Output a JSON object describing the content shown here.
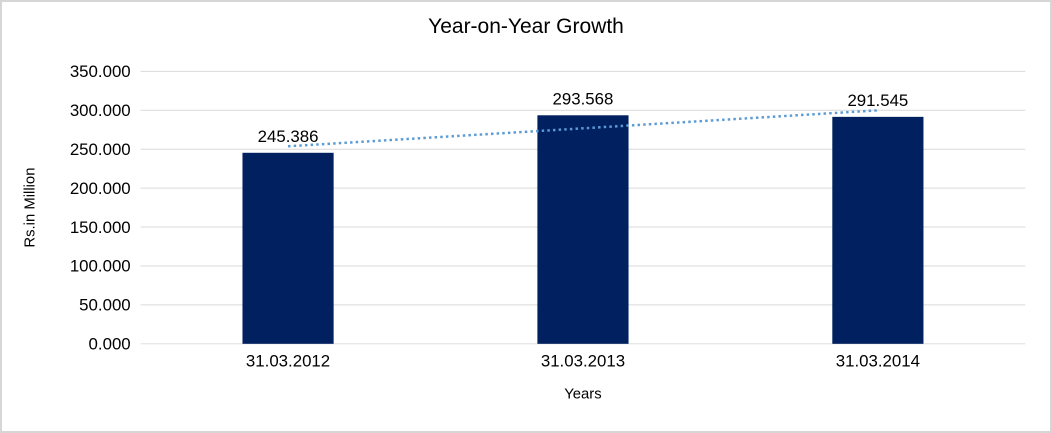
{
  "chart_data": {
    "type": "bar",
    "title": "Year-on-Year Growth",
    "xlabel": "Years",
    "ylabel": "Rs.in Million",
    "categories": [
      "31.03.2012",
      "31.03.2013",
      "31.03.2014"
    ],
    "values": [
      245.386,
      293.568,
      291.545
    ],
    "data_labels": [
      "245.386",
      "293.568",
      "291.545"
    ],
    "ylim": [
      0,
      350
    ],
    "ytick_step": 50,
    "ytick_labels": [
      "0.000",
      "50.000",
      "100.000",
      "150.000",
      "200.000",
      "250.000",
      "300.000",
      "350.000"
    ],
    "grid": true,
    "legend": "none",
    "bar_color": "#002060",
    "gridline_color": "#d9d9d9",
    "trendline": {
      "type": "linear",
      "style": "dotted",
      "color": "#5b9bd5"
    }
  },
  "frame": {
    "border_color": "#d6d6d6",
    "background_color": "#ffffff"
  }
}
